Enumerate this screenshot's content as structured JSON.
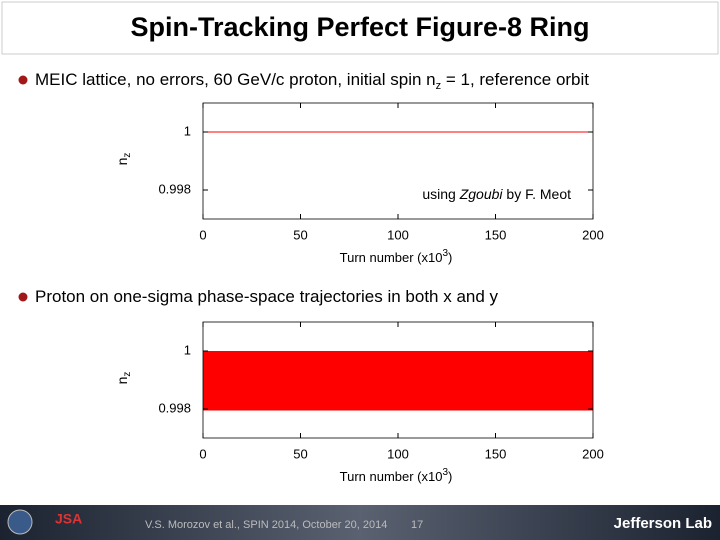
{
  "title": "Spin-Tracking Perfect Figure-8 Ring",
  "bullets": [
    {
      "parts": [
        "MEIC lattice, no errors, 60 GeV/c proton, initial spin n",
        "z",
        " = 1, reference orbit"
      ]
    },
    {
      "parts": [
        "Proton on one-sigma phase-space trajectories in both x and y"
      ]
    }
  ],
  "chart_data": [
    {
      "type": "line",
      "x": [
        0,
        200
      ],
      "values": [
        1,
        1
      ],
      "color": "#ff0000",
      "xlim": [
        0,
        200
      ],
      "ylim": [
        0.997,
        1.001
      ],
      "xticks": [
        0,
        50,
        100,
        150,
        200
      ],
      "yticks": [
        1,
        0.998
      ],
      "xlabel": [
        "Turn number (x10",
        "3",
        ")"
      ],
      "ylabel": [
        "n",
        "z"
      ],
      "annotation": [
        "using ",
        "Zgoubi",
        " by F. Meot"
      ]
    },
    {
      "type": "area",
      "x": [
        0,
        200
      ],
      "upper": [
        1,
        1
      ],
      "lower": [
        0.99795,
        0.99795
      ],
      "color": "#ff0000",
      "xlim": [
        0,
        200
      ],
      "ylim": [
        0.997,
        1.001
      ],
      "xticks": [
        0,
        50,
        100,
        150,
        200
      ],
      "yticks": [
        1,
        0.998
      ],
      "xlabel": [
        "Turn number (x10",
        "3",
        ")"
      ],
      "ylabel": [
        "n",
        "z"
      ]
    }
  ],
  "footer": {
    "citation": "V.S. Morozov et al., SPIN 2014, October 20, 2014",
    "page": "17",
    "logo": "JSA",
    "lab": "Jefferson Lab"
  }
}
